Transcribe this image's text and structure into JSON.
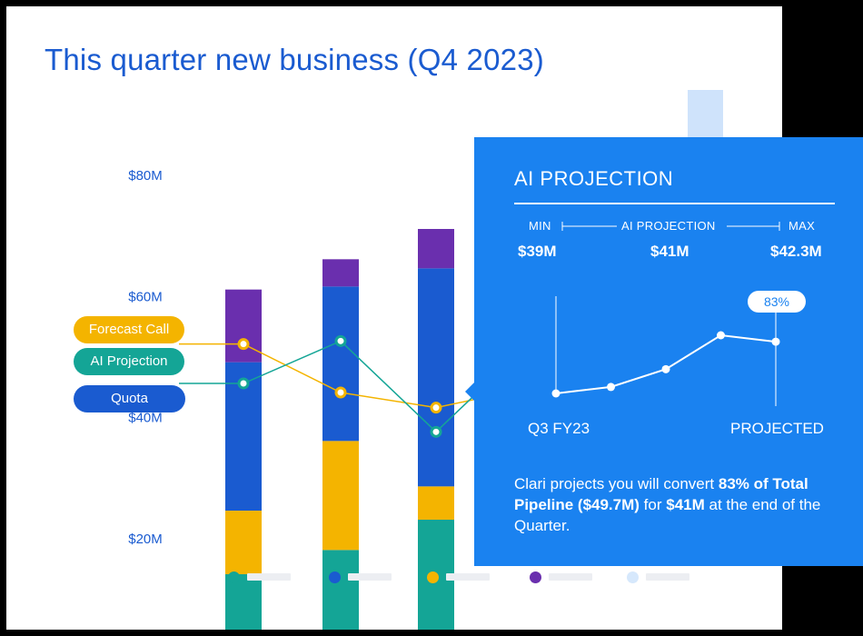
{
  "title": "This quarter new business (Q4 2023)",
  "colors": {
    "brand_blue": "#1a5bd0",
    "teal": "#14a596",
    "yellow": "#f4b400",
    "purple": "#6a2fae",
    "light_blue": "#cfe3fb",
    "popup_blue": "#1a82f0"
  },
  "chart_data": {
    "type": "bar",
    "stacked": true,
    "y_tick_labels": [
      "$80M",
      "$60M",
      "$40M",
      "$20M"
    ],
    "y_ticks": [
      80,
      60,
      40,
      20
    ],
    "categories": [
      "",
      "",
      ""
    ],
    "series": [
      {
        "color": "#14a596",
        "values": [
          10,
          14,
          19
        ]
      },
      {
        "color": "#f4b400",
        "values": [
          10.5,
          18,
          5.5
        ]
      },
      {
        "color": "#1a5bd0",
        "values": [
          24.5,
          25.5,
          36
        ]
      },
      {
        "color": "#6a2fae",
        "values": [
          12,
          4.5,
          6.5
        ]
      }
    ],
    "lines": [
      {
        "name": "Forecast Call",
        "color": "#f4b400",
        "values": [
          52,
          44,
          41.5
        ]
      },
      {
        "name": "AI Projection",
        "color": "#14a596",
        "values": [
          45.5,
          52.5,
          37.5
        ]
      }
    ],
    "legend_labels": [
      "Forecast Call",
      "AI Projection",
      "Quota"
    ]
  },
  "popup": {
    "title": "AI PROJECTION",
    "min_label": "MIN",
    "ai_label": "AI PROJECTION",
    "max_label": "MAX",
    "min_value": "$39M",
    "ai_value": "$41M",
    "max_value": "$42.3M",
    "badge": "83%",
    "x_start": "Q3 FY23",
    "x_end": "PROJECTED",
    "line_values": [
      10,
      14,
      25,
      46,
      42
    ],
    "desc_1": "Clari projects you will convert ",
    "desc_2": "83% of Total Pipeline ($49.7M)",
    "desc_3": " for ",
    "desc_4": "$41M",
    "desc_5": " at the end of the Quarter."
  },
  "legend": {
    "dots": [
      "#14a596",
      "#1a5bd0",
      "#f4b400",
      "#6a2fae",
      "#d6e8fc"
    ]
  }
}
